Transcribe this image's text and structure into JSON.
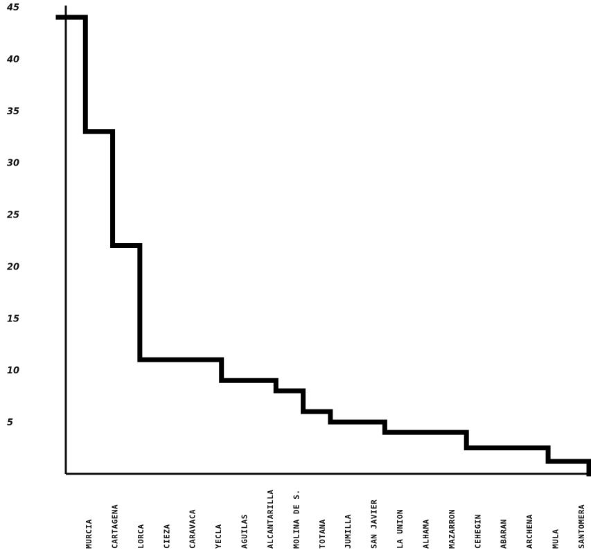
{
  "chart_data": {
    "type": "line",
    "step": true,
    "categories": [
      "Murcia",
      "Cartagena",
      "Lorca",
      "Cieza",
      "Caravaca",
      "Yecla",
      "Aguilas",
      "Alcantarilla",
      "Molina de S.",
      "Totana",
      "Jumilla",
      "San Javier",
      "La Union",
      "Alhama",
      "Mazarron",
      "Cehegin",
      "Abaran",
      "Archena",
      "Mula",
      "Santomera"
    ],
    "values": [
      44,
      33,
      22,
      11,
      11,
      11,
      9,
      9,
      8,
      6,
      5,
      5,
      4,
      4,
      4,
      2.5,
      2.5,
      2.5,
      1.2,
      1.2
    ],
    "yticks": [
      "45",
      "40",
      "35",
      "30",
      "25",
      "20",
      "15",
      "10",
      "5"
    ],
    "ylim": [
      0,
      45
    ],
    "title": "",
    "xlabel": "",
    "ylabel": "",
    "grid": false,
    "legend": "none",
    "line_color": "#000000"
  }
}
